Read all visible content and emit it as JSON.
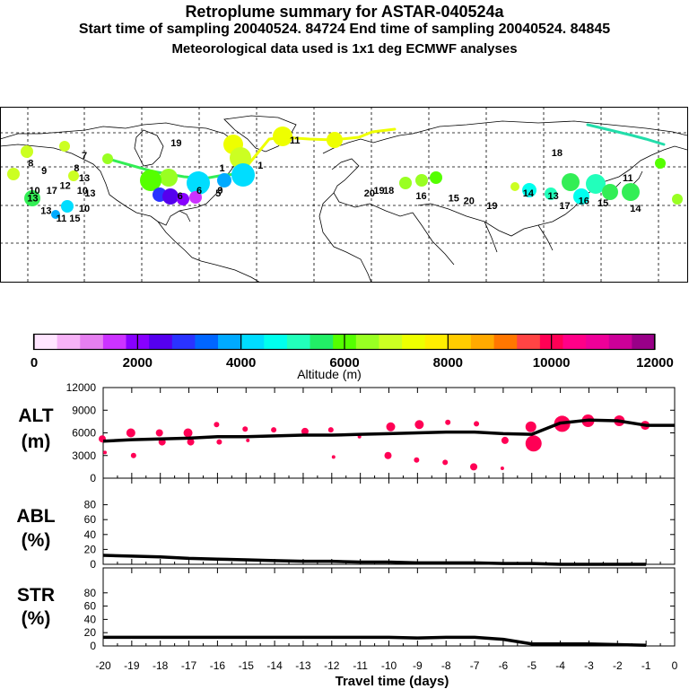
{
  "header": {
    "title": "Retroplume summary for ASTAR-040524a",
    "subtitle": "Start time of sampling 20040524. 84724     End time of sampling 20040524. 84845",
    "met_note": "Meteorological data used is 1x1 deg ECMWF analyses"
  },
  "colorbar": {
    "ticks": [
      "0",
      "2000",
      "4000",
      "6000",
      "8000",
      "10000",
      "12000"
    ],
    "label": "Altitude (m)",
    "colors": [
      "#ffe6ff",
      "#f7b3f7",
      "#e67ff0",
      "#cc33ff",
      "#8800ff",
      "#5500ee",
      "#2a33ff",
      "#0066ff",
      "#00aaff",
      "#00ddff",
      "#00ffee",
      "#22ffbb",
      "#22ee66",
      "#55ff00",
      "#99ff22",
      "#ccff22",
      "#eeff00",
      "#ffee00",
      "#ffcc00",
      "#ffaa00",
      "#ff7700",
      "#ff4444",
      "#ff0055",
      "#ff0088",
      "#ee0099",
      "#cc0099",
      "#990088"
    ]
  },
  "map": {
    "labels": [
      {
        "text": "19",
        "lon": -102,
        "lat": 65
      },
      {
        "text": "11",
        "lon": -40,
        "lat": 66
      },
      {
        "text": "7",
        "lon": -150,
        "lat": 60
      },
      {
        "text": "8",
        "lon": -178,
        "lat": 57
      },
      {
        "text": "9",
        "lon": -171,
        "lat": 54
      },
      {
        "text": "8",
        "lon": -154,
        "lat": 55
      },
      {
        "text": "13",
        "lon": -150,
        "lat": 51
      },
      {
        "text": "10",
        "lon": -176,
        "lat": 46
      },
      {
        "text": "17",
        "lon": -167,
        "lat": 46
      },
      {
        "text": "12",
        "lon": -160,
        "lat": 48
      },
      {
        "text": "10",
        "lon": -151,
        "lat": 46
      },
      {
        "text": "13",
        "lon": -147,
        "lat": 45
      },
      {
        "text": "13",
        "lon": -177,
        "lat": 43
      },
      {
        "text": "10",
        "lon": -150,
        "lat": 39
      },
      {
        "text": "13",
        "lon": -170,
        "lat": 38
      },
      {
        "text": "11",
        "lon": -162,
        "lat": 35
      },
      {
        "text": "15",
        "lon": -155,
        "lat": 35
      },
      {
        "text": "1",
        "lon": -78,
        "lat": 55
      },
      {
        "text": "1",
        "lon": -58,
        "lat": 56
      },
      {
        "text": "6",
        "lon": -90,
        "lat": 46
      },
      {
        "text": "6",
        "lon": -100,
        "lat": 44
      },
      {
        "text": "5",
        "lon": -80,
        "lat": 45
      },
      {
        "text": "9",
        "lon": -79,
        "lat": 46
      },
      {
        "text": "20",
        "lon": -1,
        "lat": 45
      },
      {
        "text": "19",
        "lon": 4,
        "lat": 46
      },
      {
        "text": "18",
        "lon": 9,
        "lat": 46
      },
      {
        "text": "16",
        "lon": 26,
        "lat": 44
      },
      {
        "text": "15",
        "lon": 43,
        "lat": 43
      },
      {
        "text": "20",
        "lon": 51,
        "lat": 42
      },
      {
        "text": "19",
        "lon": 63,
        "lat": 40
      },
      {
        "text": "14",
        "lon": 82,
        "lat": 45
      },
      {
        "text": "13",
        "lon": 95,
        "lat": 44
      },
      {
        "text": "17",
        "lon": 101,
        "lat": 40
      },
      {
        "text": "16",
        "lon": 111,
        "lat": 42
      },
      {
        "text": "15",
        "lon": 121,
        "lat": 41
      },
      {
        "text": "11",
        "lon": 134,
        "lat": 51
      },
      {
        "text": "14",
        "lon": 138,
        "lat": 39
      },
      {
        "text": "18",
        "lon": 97,
        "lat": 61
      }
    ]
  },
  "chart_data": [
    {
      "type": "scatter",
      "panel_label": "ALT",
      "unit_label": "(m)",
      "yticks": [
        "12000",
        "9000",
        "6000",
        "3000",
        "0"
      ],
      "ylim": [
        0,
        12000
      ],
      "xlim": [
        -20,
        0
      ],
      "series": [
        {
          "name": "mean altitude",
          "x": [
            -20,
            -19,
            -18,
            -17,
            -16,
            -15,
            -14,
            -13,
            -12,
            -11,
            -10,
            -9,
            -8,
            -7,
            -6,
            -5,
            -4,
            -3,
            -2,
            -1,
            0
          ],
          "values": [
            4900,
            5100,
            5200,
            5300,
            5500,
            5500,
            5600,
            5700,
            5700,
            5800,
            5900,
            6000,
            6100,
            6100,
            5900,
            5800,
            7300,
            7700,
            7600,
            7000,
            7000
          ]
        },
        {
          "name": "plume clusters",
          "x": [
            -20,
            -20,
            -19,
            -19,
            -18,
            -18,
            -17,
            -17,
            -16,
            -16,
            -15,
            -15,
            -14,
            -13,
            -12,
            -12,
            -11,
            -10,
            -10,
            -9,
            -9,
            -8,
            -8,
            -7,
            -7,
            -6,
            -6,
            -5,
            -5,
            -4,
            -3,
            -2,
            -1
          ],
          "values": [
            5200,
            3400,
            6000,
            3000,
            6000,
            4800,
            6000,
            4800,
            7100,
            4800,
            6500,
            5000,
            6400,
            6200,
            6400,
            2800,
            5500,
            6800,
            3000,
            7100,
            2400,
            7400,
            2100,
            7200,
            1500,
            5000,
            1300,
            4600,
            6800,
            7200,
            7600,
            7600,
            7000
          ]
        }
      ]
    },
    {
      "type": "line",
      "panel_label": "ABL",
      "unit_label": "(%)",
      "yticks": [
        "80",
        "60",
        "40",
        "20",
        "0"
      ],
      "ylim": [
        0,
        100
      ],
      "xlim": [
        -20,
        0
      ],
      "series": [
        {
          "name": "ABL fraction",
          "x": [
            -20,
            -19,
            -18,
            -17,
            -16,
            -15,
            -14,
            -13,
            -12,
            -11,
            -10,
            -9,
            -8,
            -7,
            -6,
            -5,
            -4,
            -3,
            -2,
            -1
          ],
          "values": [
            12,
            11,
            10,
            8,
            7,
            6,
            5,
            4,
            4,
            3,
            3,
            2,
            2,
            2,
            1,
            1,
            0,
            0,
            0,
            0
          ]
        }
      ]
    },
    {
      "type": "line",
      "panel_label": "STR",
      "unit_label": "(%)",
      "yticks": [
        "80",
        "60",
        "40",
        "20",
        "0"
      ],
      "ylim": [
        0,
        100
      ],
      "xlim": [
        -20,
        0
      ],
      "xlabel": "Travel time (days)",
      "xticks": [
        "-20",
        "-19",
        "-18",
        "-17",
        "-16",
        "-15",
        "-14",
        "-13",
        "-12",
        "-11",
        "-10",
        "-9",
        "-8",
        "-7",
        "-6",
        "-5",
        "-4",
        "-3",
        "-2",
        "-1",
        "0"
      ],
      "series": [
        {
          "name": "stratosphere fraction",
          "x": [
            -20,
            -19,
            -18,
            -17,
            -16,
            -15,
            -14,
            -13,
            -12,
            -11,
            -10,
            -9,
            -8,
            -7,
            -6,
            -5,
            -4,
            -3,
            -2,
            -1
          ],
          "values": [
            13,
            13,
            13,
            13,
            13,
            13,
            13,
            13,
            13,
            13,
            13,
            12,
            13,
            13,
            10,
            3,
            3,
            3,
            2,
            1
          ]
        }
      ]
    }
  ]
}
